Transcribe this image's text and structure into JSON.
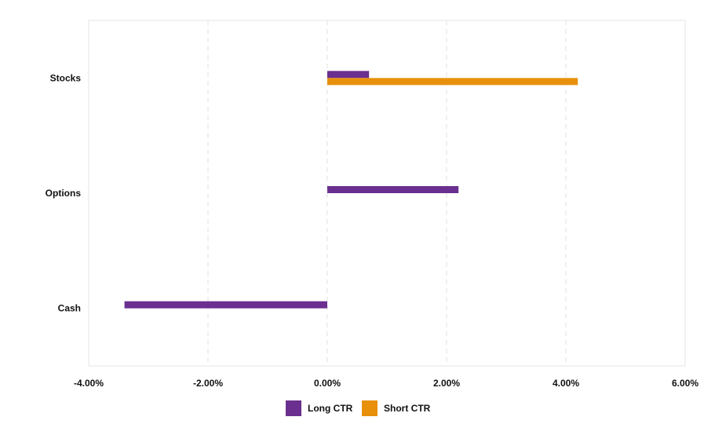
{
  "chart_data": {
    "type": "bar",
    "orientation": "horizontal",
    "categories": [
      "Stocks",
      "Options",
      "Cash"
    ],
    "series": [
      {
        "name": "Long CTR",
        "color": "#6b2f8f",
        "values": [
          0.7,
          2.2,
          -3.4
        ]
      },
      {
        "name": "Short CTR",
        "color": "#e8900c",
        "values": [
          4.2,
          null,
          null
        ]
      }
    ],
    "x_ticks": [
      "-4.00%",
      "-2.00%",
      "0.00%",
      "2.00%",
      "4.00%",
      "6.00%"
    ],
    "xlim": [
      -4,
      6
    ],
    "value_unit": "%",
    "grid": "vertical dashed",
    "legend_position": "bottom"
  }
}
